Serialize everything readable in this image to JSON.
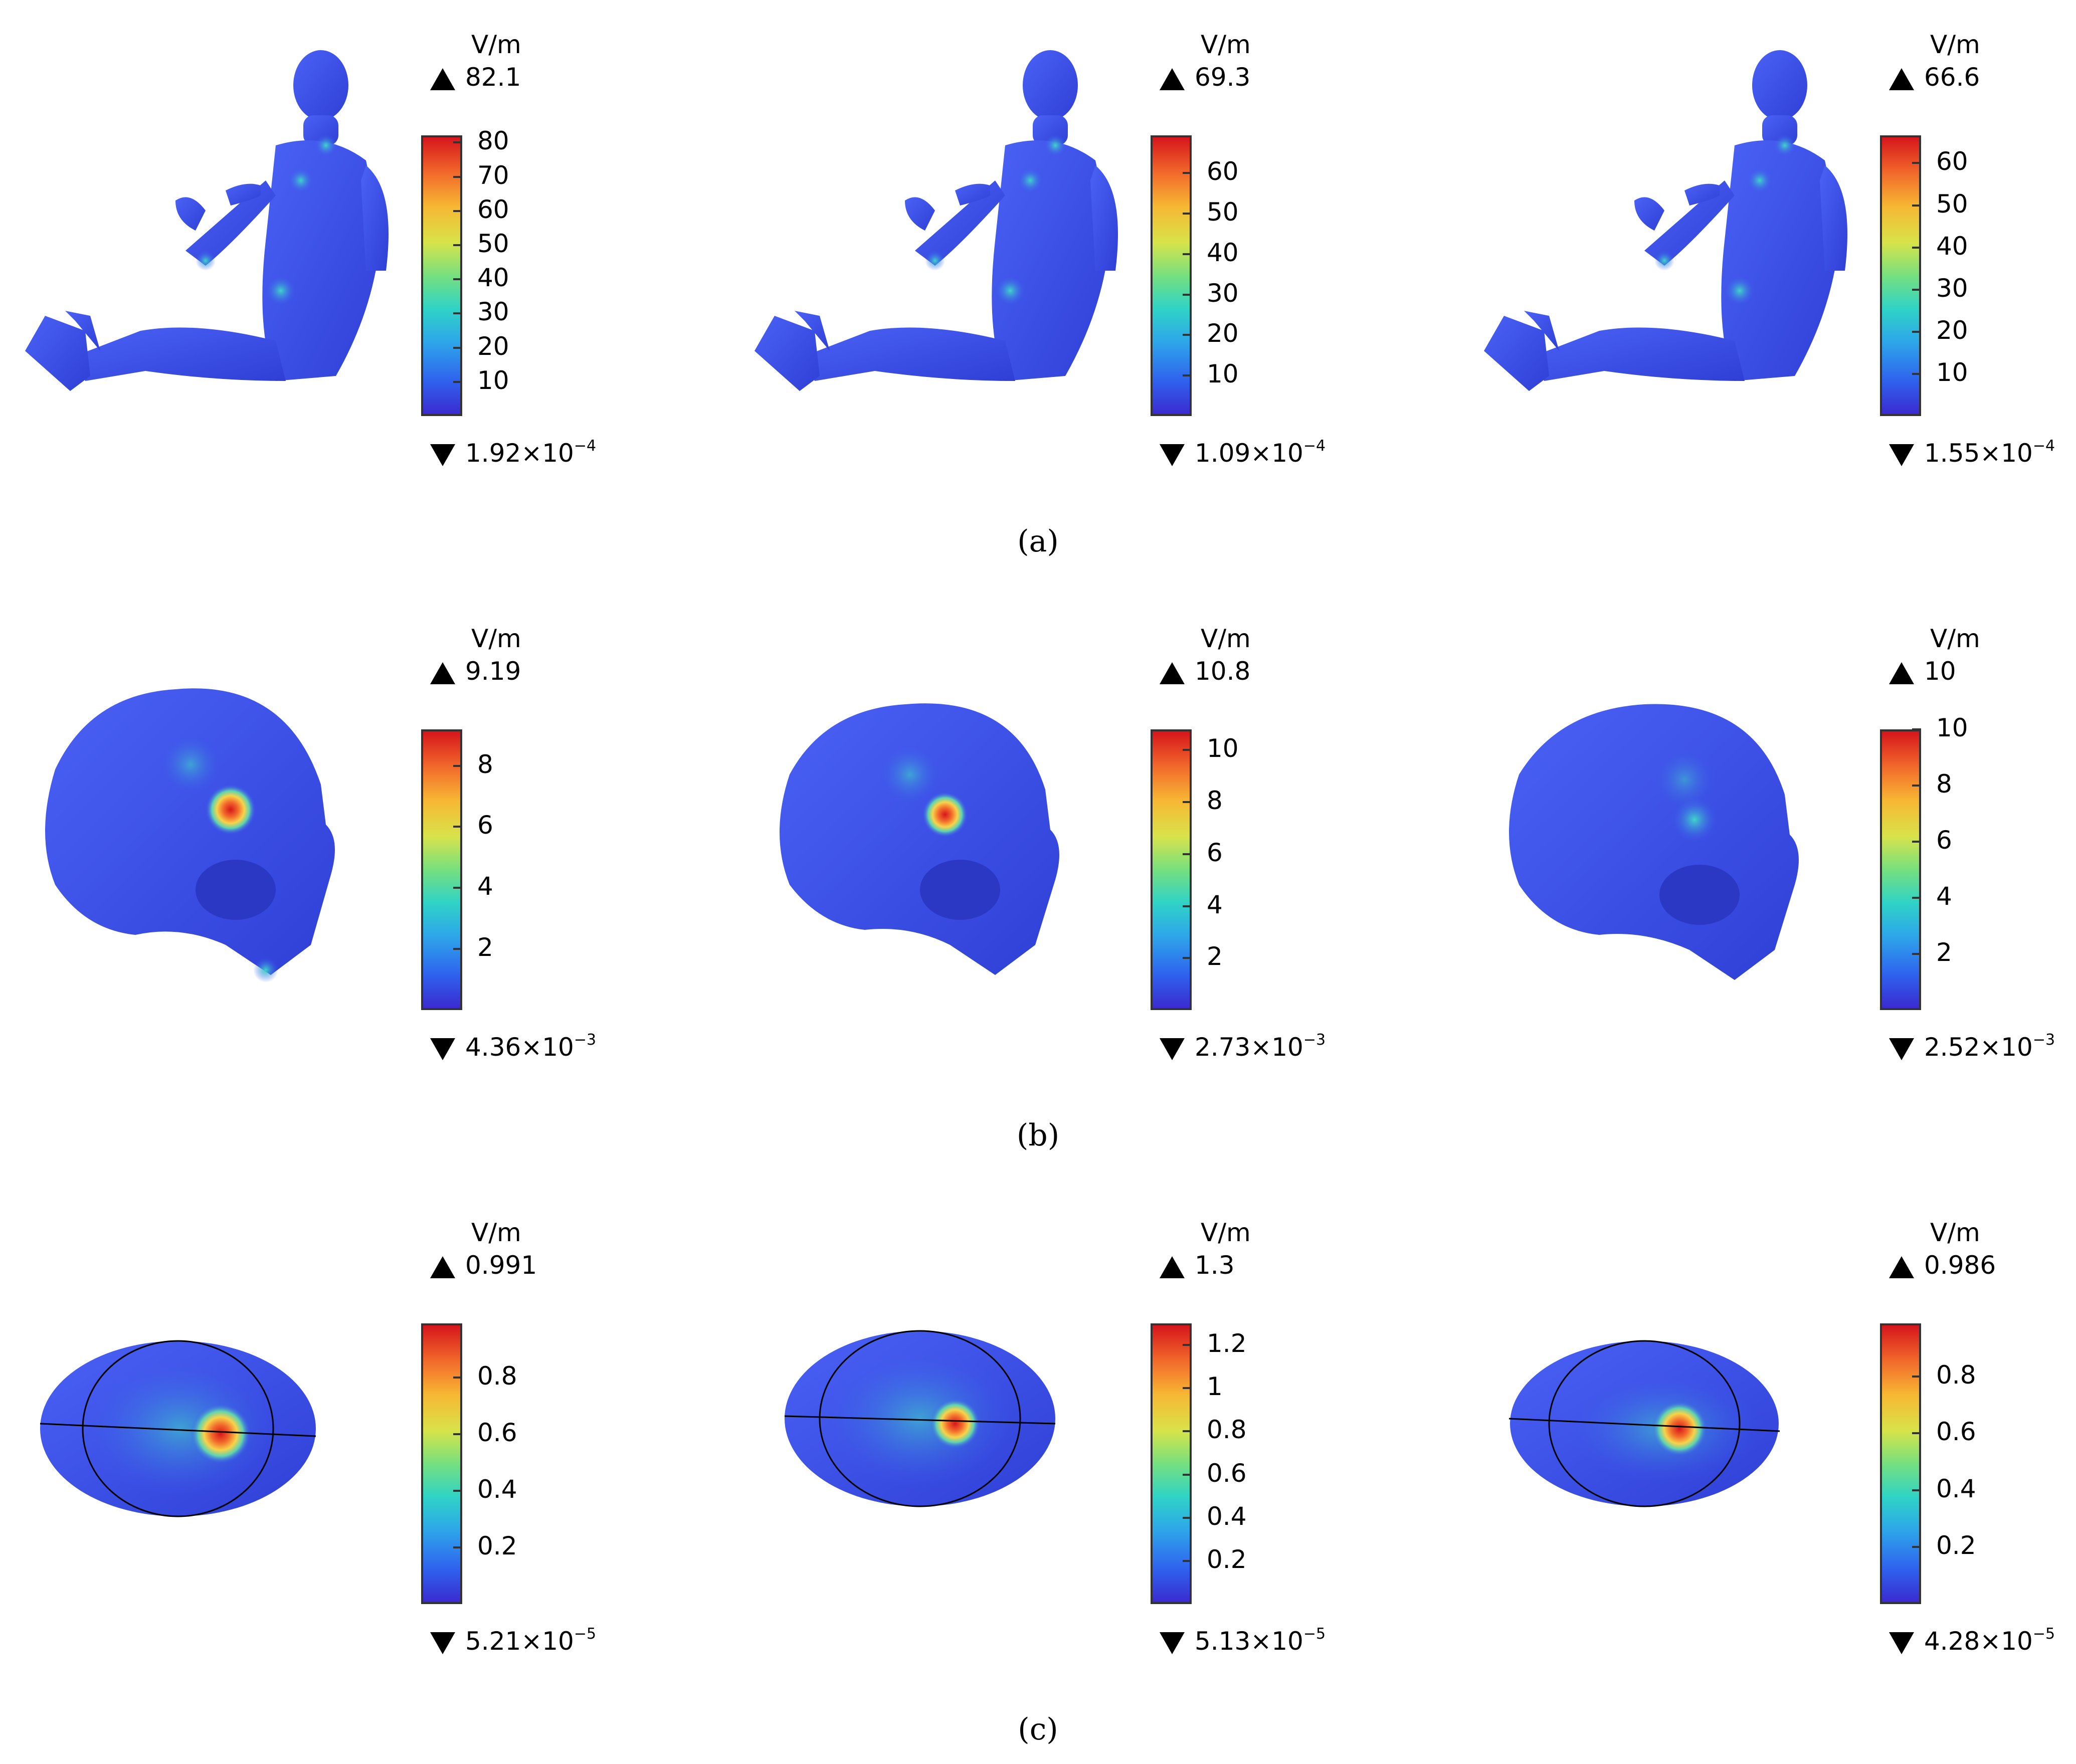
{
  "unit": "V/m",
  "rows": [
    {
      "id": "a",
      "caption": "(a)",
      "object": "human-body",
      "panels": [
        {
          "max": "82.1",
          "min_mantissa": "1.92×10",
          "min_exp": "−4",
          "ticks": [
            "80",
            "70",
            "60",
            "50",
            "40",
            "30",
            "20",
            "10"
          ],
          "range": [
            0,
            82.1
          ]
        },
        {
          "max": "69.3",
          "min_mantissa": "1.09×10",
          "min_exp": "−4",
          "ticks": [
            "60",
            "50",
            "40",
            "30",
            "20",
            "10"
          ],
          "range": [
            0,
            69.3
          ]
        },
        {
          "max": "66.6",
          "min_mantissa": "1.55×10",
          "min_exp": "−4",
          "ticks": [
            "60",
            "50",
            "40",
            "30",
            "20",
            "10"
          ],
          "range": [
            0,
            66.6
          ]
        }
      ]
    },
    {
      "id": "b",
      "caption": "(b)",
      "object": "skull",
      "panels": [
        {
          "max": "9.19",
          "min_mantissa": "4.36×10",
          "min_exp": "−3",
          "ticks": [
            "8",
            "6",
            "4",
            "2"
          ],
          "range": [
            0,
            9.19
          ]
        },
        {
          "max": "10.8",
          "min_mantissa": "2.73×10",
          "min_exp": "−3",
          "ticks": [
            "10",
            "8",
            "6",
            "4",
            "2"
          ],
          "range": [
            0,
            10.8
          ]
        },
        {
          "max": "10",
          "min_mantissa": "2.52×10",
          "min_exp": "−3",
          "ticks": [
            "10",
            "8",
            "6",
            "4",
            "2"
          ],
          "range": [
            0,
            10
          ]
        }
      ]
    },
    {
      "id": "c",
      "caption": "(c)",
      "object": "ellipsoid",
      "panels": [
        {
          "max": "0.991",
          "min_mantissa": "5.21×10",
          "min_exp": "−5",
          "ticks": [
            "0.8",
            "0.6",
            "0.4",
            "0.2"
          ],
          "range": [
            0,
            0.991
          ]
        },
        {
          "max": "1.3",
          "min_mantissa": "5.13×10",
          "min_exp": "−5",
          "ticks": [
            "1.2",
            "1",
            "0.8",
            "0.6",
            "0.4",
            "0.2"
          ],
          "range": [
            0,
            1.3
          ]
        },
        {
          "max": "0.986",
          "min_mantissa": "4.28×10",
          "min_exp": "−5",
          "ticks": [
            "0.8",
            "0.6",
            "0.4",
            "0.2"
          ],
          "range": [
            0,
            0.986
          ]
        }
      ]
    }
  ]
}
